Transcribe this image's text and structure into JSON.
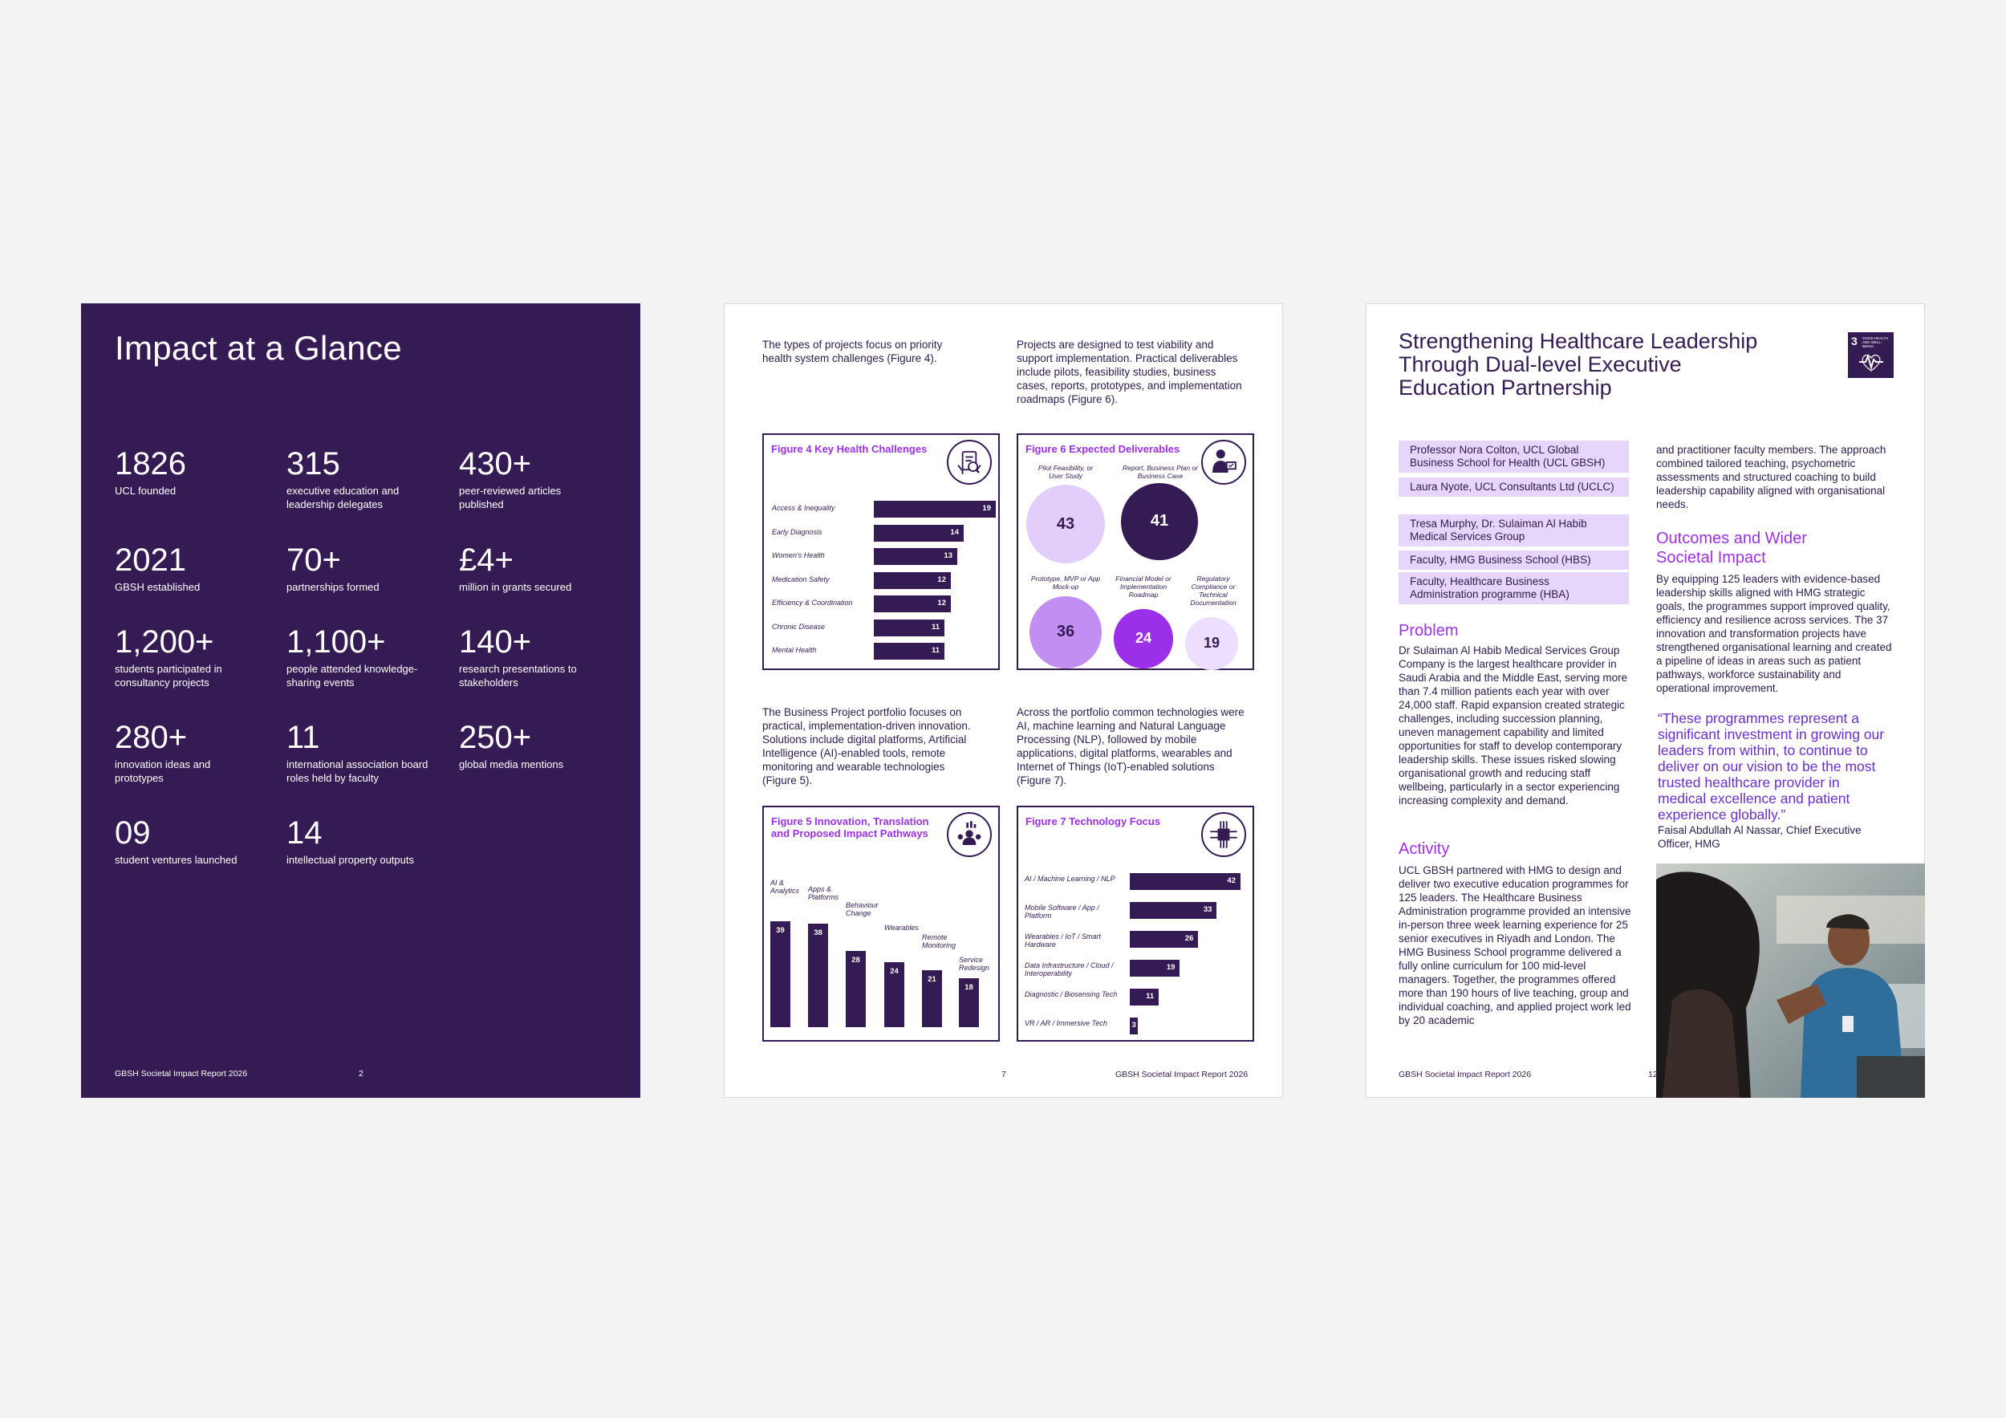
{
  "page1": {
    "title": "Impact at a Glance",
    "stats": [
      {
        "num": "1826",
        "label": "UCL founded"
      },
      {
        "num": "315",
        "label": "executive education and leadership delegates"
      },
      {
        "num": "430+",
        "label": "peer-reviewed articles published"
      },
      {
        "num": "2021",
        "label": "GBSH established"
      },
      {
        "num": "70+",
        "label": "partnerships formed"
      },
      {
        "num": "£4+",
        "label": "million in grants secured"
      },
      {
        "num": "1,200+",
        "label": "students participated in consultancy projects"
      },
      {
        "num": "1,100+",
        "label": "people attended knowledge-sharing events"
      },
      {
        "num": "140+",
        "label": "research presentations to stakeholders"
      },
      {
        "num": "280+",
        "label": "innovation ideas and prototypes"
      },
      {
        "num": "11",
        "label": "international association board roles held by faculty"
      },
      {
        "num": "250+",
        "label": "global media mentions"
      },
      {
        "num": "09",
        "label": "student ventures launched"
      },
      {
        "num": "14",
        "label": "intellectual property outputs"
      }
    ],
    "footer": "GBSH Societal Impact Report 2026",
    "page_num": "2"
  },
  "page2": {
    "intro1": "The types of projects focus on priority health system challenges (Figure 4).",
    "intro2": "Projects are designed to test viability and support implementation. Practical deliverables include pilots, feasibility studies, business cases, reports, prototypes, and implementation roadmaps (Figure 6).",
    "intro3": "The Business Project portfolio focuses on practical, implementation-driven innovation. Solutions include digital platforms, Artificial Intelligence (AI)-enabled tools, remote monitoring and wearable technologies (Figure 5).",
    "intro4": "Across the portfolio common technologies were AI, machine learning and Natural Language Processing (NLP), followed by mobile applications, digital platforms, wearables and Internet of Things (IoT)-enabled solutions (Figure 7).",
    "footer": "GBSH Societal Impact Report 2026",
    "page_num": "7"
  },
  "chart_data": [
    {
      "type": "bar",
      "title": "Figure 4 Key Health Challenges",
      "orientation": "horizontal",
      "categories": [
        "Access & Inequality",
        "Early Diagnosis",
        "Women's Health",
        "Medication Safety",
        "Efficiency & Coordination",
        "Chronic Disease",
        "Mental Health"
      ],
      "values": [
        19,
        14,
        13,
        12,
        12,
        11,
        11
      ]
    },
    {
      "type": "bubble",
      "title": "Figure 6 Expected Deliverables",
      "categories": [
        "Pilot Feasibility, or User Study",
        "Report, Business Plan or Business Case",
        "Prototype, MVP or App Mock-up",
        "Financial Model or Implementation Roadmap",
        "Regulatory Compliance or Technical Documentation"
      ],
      "values": [
        43,
        41,
        36,
        24,
        19
      ],
      "colors": [
        "#e3cdfb",
        "#341b54",
        "#c28ef2",
        "#9b30e8",
        "#ecdffd"
      ]
    },
    {
      "type": "bar",
      "title": "Figure 5 Innovation, Translation and Proposed Impact Pathways",
      "orientation": "vertical",
      "categories": [
        "AI & Analytics",
        "Apps & Platforms",
        "Behaviour Change",
        "Wearables",
        "Remote Monitoring",
        "Service Redesign"
      ],
      "values": [
        39,
        38,
        28,
        24,
        21,
        18
      ]
    },
    {
      "type": "bar",
      "title": "Figure 7 Technology Focus",
      "orientation": "horizontal",
      "categories": [
        "AI / Machine Learning / NLP",
        "Mobile Software / App / Platform",
        "Wearables / IoT / Smart Hardware",
        "Data Infrastructure / Cloud / Interoperability",
        "Diagnostic / Biosensing Tech",
        "VR / AR / Immersive Tech"
      ],
      "values": [
        42,
        33,
        26,
        19,
        11,
        3
      ]
    }
  ],
  "page3": {
    "title": "Strengthening Healthcare Leadership Through Dual-level Executive Education Partnership",
    "sdg_num": "3",
    "sdg_text": "GOOD HEALTH AND WELL-BEING",
    "boxes": [
      "Professor Nora Colton, UCL Global Business School for Health (UCL GBSH)",
      "Laura Nyote, UCL Consultants Ltd (UCLC)",
      "Tresa Murphy, Dr. Sulaiman Al Habib Medical Services Group",
      "Faculty, HMG Business School (HBS)",
      "Faculty, Healthcare Business Administration programme (HBA)"
    ],
    "problem_heading": "Problem",
    "problem_text": "Dr Sulaiman Al Habib Medical Services Group Company is the largest healthcare provider in Saudi Arabia and the Middle East, serving more than 7.4 million patients each year with over 24,000 staff. Rapid expansion created strategic challenges, including succession planning, uneven management capability and limited opportunities for staff to develop contemporary leadership skills. These issues risked slowing organisational growth and reducing staff wellbeing, particularly in a sector experiencing increasing complexity and demand.",
    "activity_heading": "Activity",
    "activity_text": "UCL GBSH partnered with HMG to design and deliver two executive education programmes for 125 leaders. The Healthcare Business Administration programme provided an intensive in-person three week learning experience for 25 senior executives in Riyadh and London. The HMG Business School programme delivered a fully online curriculum for 100 mid-level managers. Together, the programmes offered more than 190 hours of live teaching, group and individual coaching, and applied project work led by 20 academic",
    "col2_text": "and practitioner faculty members. The approach combined tailored teaching, psychometric assessments and structured coaching to build leadership capability aligned with organisational needs.",
    "outcomes_heading": "Outcomes and Wider Societal Impact",
    "outcomes_text": "By equipping 125 leaders with evidence-based leadership skills aligned with HMG strategic goals, the programmes support improved quality, efficiency and resilience across services. The 37 innovation and transformation projects have strengthened organisational learning and created a pipeline of ideas in areas such as patient pathways, workforce sustainability and operational improvement.",
    "quote": "“These programmes represent a significant investment in growing our leaders from within, to continue to deliver on our vision to be the most trusted healthcare provider in medical excellence and patient experience globally.”",
    "quote_author": "Faisal Abdullah Al Nassar, Chief Executive Officer, HMG",
    "footer": "GBSH Societal Impact Report 2026",
    "page_num": "12"
  }
}
